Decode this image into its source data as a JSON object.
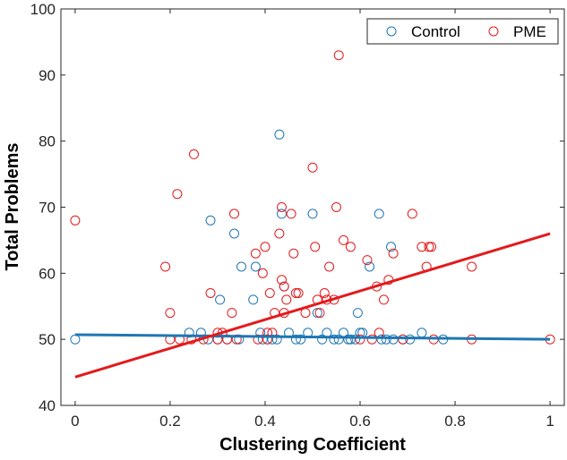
{
  "chart_data": {
    "type": "scatter",
    "title": "",
    "xlabel": "Clustering Coefficient",
    "ylabel": "Total Problems",
    "xlim": [
      -0.03,
      1.03
    ],
    "ylim": [
      40,
      100
    ],
    "xticks": [
      0,
      0.2,
      0.4,
      0.6,
      0.8,
      1
    ],
    "xtick_labels": [
      "0",
      "0.2",
      "0.4",
      "0.6",
      "0.8",
      "1"
    ],
    "yticks": [
      40,
      50,
      60,
      70,
      80,
      90,
      100
    ],
    "ytick_labels": [
      "40",
      "50",
      "60",
      "70",
      "80",
      "90",
      "100"
    ],
    "grid": false,
    "legend": {
      "placement": "top-right",
      "entries": [
        "Control",
        "PME"
      ]
    },
    "series": [
      {
        "name": "Control",
        "color": "#1f77b4",
        "marker": "open-circle",
        "points": [
          [
            0.0,
            50
          ],
          [
            0.24,
            51
          ],
          [
            0.265,
            51
          ],
          [
            0.28,
            50
          ],
          [
            0.285,
            68
          ],
          [
            0.3,
            50
          ],
          [
            0.305,
            56
          ],
          [
            0.32,
            50
          ],
          [
            0.335,
            66
          ],
          [
            0.345,
            50
          ],
          [
            0.35,
            61
          ],
          [
            0.375,
            56
          ],
          [
            0.38,
            61
          ],
          [
            0.39,
            51
          ],
          [
            0.395,
            50
          ],
          [
            0.405,
            50
          ],
          [
            0.415,
            50
          ],
          [
            0.425,
            50
          ],
          [
            0.43,
            81
          ],
          [
            0.435,
            69
          ],
          [
            0.44,
            58
          ],
          [
            0.45,
            51
          ],
          [
            0.465,
            50
          ],
          [
            0.475,
            50
          ],
          [
            0.49,
            51
          ],
          [
            0.5,
            69
          ],
          [
            0.51,
            54
          ],
          [
            0.52,
            50
          ],
          [
            0.53,
            51
          ],
          [
            0.545,
            50
          ],
          [
            0.555,
            50
          ],
          [
            0.565,
            51
          ],
          [
            0.575,
            50
          ],
          [
            0.58,
            50
          ],
          [
            0.59,
            50
          ],
          [
            0.595,
            54
          ],
          [
            0.6,
            51
          ],
          [
            0.605,
            51
          ],
          [
            0.62,
            61
          ],
          [
            0.64,
            69
          ],
          [
            0.645,
            50
          ],
          [
            0.655,
            50
          ],
          [
            0.665,
            64
          ],
          [
            0.67,
            50
          ],
          [
            0.69,
            50
          ],
          [
            0.705,
            50
          ],
          [
            0.73,
            51
          ],
          [
            0.775,
            50
          ]
        ],
        "fit_line": {
          "x": [
            0,
            1
          ],
          "y": [
            50.7,
            50.0
          ]
        }
      },
      {
        "name": "PME",
        "color": "#e31a1c",
        "marker": "open-circle",
        "points": [
          [
            0.0,
            68
          ],
          [
            0.19,
            61
          ],
          [
            0.2,
            54
          ],
          [
            0.2,
            50
          ],
          [
            0.215,
            72
          ],
          [
            0.22,
            50
          ],
          [
            0.245,
            50
          ],
          [
            0.25,
            78
          ],
          [
            0.27,
            50
          ],
          [
            0.285,
            57
          ],
          [
            0.3,
            51
          ],
          [
            0.3,
            50
          ],
          [
            0.31,
            51
          ],
          [
            0.32,
            50
          ],
          [
            0.33,
            54
          ],
          [
            0.335,
            69
          ],
          [
            0.34,
            50
          ],
          [
            0.38,
            63
          ],
          [
            0.385,
            50
          ],
          [
            0.395,
            60
          ],
          [
            0.4,
            64
          ],
          [
            0.405,
            51
          ],
          [
            0.405,
            50
          ],
          [
            0.41,
            57
          ],
          [
            0.415,
            51
          ],
          [
            0.42,
            54
          ],
          [
            0.43,
            66
          ],
          [
            0.435,
            59
          ],
          [
            0.435,
            70
          ],
          [
            0.44,
            58
          ],
          [
            0.44,
            54
          ],
          [
            0.445,
            56
          ],
          [
            0.455,
            69
          ],
          [
            0.46,
            63
          ],
          [
            0.465,
            57
          ],
          [
            0.47,
            57
          ],
          [
            0.485,
            54
          ],
          [
            0.5,
            76
          ],
          [
            0.505,
            64
          ],
          [
            0.51,
            56
          ],
          [
            0.515,
            54
          ],
          [
            0.525,
            57
          ],
          [
            0.53,
            56
          ],
          [
            0.535,
            61
          ],
          [
            0.545,
            56
          ],
          [
            0.55,
            70
          ],
          [
            0.555,
            93
          ],
          [
            0.565,
            65
          ],
          [
            0.58,
            64
          ],
          [
            0.6,
            50
          ],
          [
            0.615,
            62
          ],
          [
            0.625,
            50
          ],
          [
            0.635,
            58
          ],
          [
            0.64,
            51
          ],
          [
            0.65,
            56
          ],
          [
            0.66,
            59
          ],
          [
            0.67,
            63
          ],
          [
            0.69,
            50
          ],
          [
            0.71,
            69
          ],
          [
            0.73,
            64
          ],
          [
            0.74,
            61
          ],
          [
            0.745,
            64
          ],
          [
            0.75,
            64
          ],
          [
            0.755,
            50
          ],
          [
            0.835,
            50
          ],
          [
            0.835,
            61
          ],
          [
            1.0,
            50
          ]
        ],
        "fit_line": {
          "x": [
            0,
            1
          ],
          "y": [
            44.3,
            66.0
          ]
        }
      }
    ]
  }
}
